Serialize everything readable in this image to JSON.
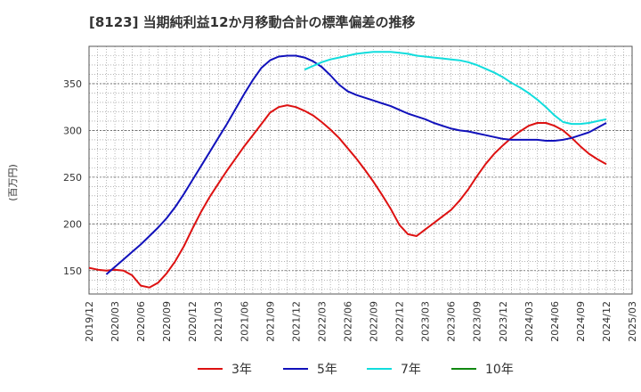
{
  "chart_data": {
    "type": "line",
    "title": "[8123]  当期純利益12か月移動合計の標準偏差の推移",
    "ylabel": "(百万円)",
    "xlabel": "",
    "x_ticks": [
      "2019/12",
      "2020/03",
      "2020/06",
      "2020/09",
      "2020/12",
      "2021/03",
      "2021/06",
      "2021/09",
      "2021/12",
      "2022/03",
      "2022/06",
      "2022/09",
      "2022/12",
      "2023/03",
      "2023/06",
      "2023/09",
      "2023/12",
      "2024/03",
      "2024/06",
      "2024/09",
      "2024/12",
      "2025/03"
    ],
    "y_ticks": [
      150,
      200,
      250,
      300,
      350
    ],
    "ylim": [
      125,
      390
    ],
    "grid": true,
    "legend_position": "bottom",
    "series": [
      {
        "name": "3年",
        "color": "#dd1111",
        "points": [
          [
            "2019/12",
            153
          ],
          [
            "2020/01",
            151
          ],
          [
            "2020/02",
            150
          ],
          [
            "2020/03",
            151
          ],
          [
            "2020/04",
            150
          ],
          [
            "2020/05",
            145
          ],
          [
            "2020/06",
            134
          ],
          [
            "2020/07",
            132
          ],
          [
            "2020/08",
            137
          ],
          [
            "2020/09",
            147
          ],
          [
            "2020/10",
            160
          ],
          [
            "2020/11",
            176
          ],
          [
            "2020/12",
            195
          ],
          [
            "2021/01",
            213
          ],
          [
            "2021/02",
            229
          ],
          [
            "2021/03",
            243
          ],
          [
            "2021/04",
            257
          ],
          [
            "2021/05",
            270
          ],
          [
            "2021/06",
            283
          ],
          [
            "2021/07",
            295
          ],
          [
            "2021/08",
            307
          ],
          [
            "2021/09",
            319
          ],
          [
            "2021/10",
            325
          ],
          [
            "2021/11",
            327
          ],
          [
            "2021/12",
            325
          ],
          [
            "2022/01",
            321
          ],
          [
            "2022/02",
            316
          ],
          [
            "2022/03",
            309
          ],
          [
            "2022/04",
            301
          ],
          [
            "2022/05",
            292
          ],
          [
            "2022/06",
            281
          ],
          [
            "2022/07",
            270
          ],
          [
            "2022/08",
            258
          ],
          [
            "2022/09",
            245
          ],
          [
            "2022/10",
            231
          ],
          [
            "2022/11",
            216
          ],
          [
            "2022/12",
            199
          ],
          [
            "2023/01",
            189
          ],
          [
            "2023/02",
            187
          ],
          [
            "2023/03",
            194
          ],
          [
            "2023/04",
            201
          ],
          [
            "2023/05",
            208
          ],
          [
            "2023/06",
            215
          ],
          [
            "2023/07",
            225
          ],
          [
            "2023/08",
            237
          ],
          [
            "2023/09",
            251
          ],
          [
            "2023/10",
            264
          ],
          [
            "2023/11",
            275
          ],
          [
            "2023/12",
            284
          ],
          [
            "2024/01",
            292
          ],
          [
            "2024/02",
            299
          ],
          [
            "2024/03",
            305
          ],
          [
            "2024/04",
            308
          ],
          [
            "2024/05",
            308
          ],
          [
            "2024/06",
            305
          ],
          [
            "2024/07",
            300
          ],
          [
            "2024/08",
            292
          ],
          [
            "2024/09",
            283
          ],
          [
            "2024/10",
            275
          ],
          [
            "2024/11",
            269
          ],
          [
            "2024/12",
            264
          ]
        ]
      },
      {
        "name": "5年",
        "color": "#1111bb",
        "points": [
          [
            "2020/02",
            146
          ],
          [
            "2020/03",
            154
          ],
          [
            "2020/04",
            162
          ],
          [
            "2020/05",
            170
          ],
          [
            "2020/06",
            178
          ],
          [
            "2020/07",
            187
          ],
          [
            "2020/08",
            196
          ],
          [
            "2020/09",
            206
          ],
          [
            "2020/10",
            218
          ],
          [
            "2020/11",
            232
          ],
          [
            "2020/12",
            247
          ],
          [
            "2021/01",
            262
          ],
          [
            "2021/02",
            277
          ],
          [
            "2021/03",
            292
          ],
          [
            "2021/04",
            307
          ],
          [
            "2021/05",
            323
          ],
          [
            "2021/06",
            339
          ],
          [
            "2021/07",
            354
          ],
          [
            "2021/08",
            367
          ],
          [
            "2021/09",
            375
          ],
          [
            "2021/10",
            379
          ],
          [
            "2021/11",
            380
          ],
          [
            "2021/12",
            380
          ],
          [
            "2022/01",
            378
          ],
          [
            "2022/02",
            374
          ],
          [
            "2022/03",
            368
          ],
          [
            "2022/04",
            359
          ],
          [
            "2022/05",
            349
          ],
          [
            "2022/06",
            342
          ],
          [
            "2022/07",
            338
          ],
          [
            "2022/08",
            335
          ],
          [
            "2022/09",
            332
          ],
          [
            "2022/10",
            329
          ],
          [
            "2022/11",
            326
          ],
          [
            "2022/12",
            322
          ],
          [
            "2023/01",
            318
          ],
          [
            "2023/02",
            315
          ],
          [
            "2023/03",
            312
          ],
          [
            "2023/04",
            308
          ],
          [
            "2023/05",
            305
          ],
          [
            "2023/06",
            302
          ],
          [
            "2023/07",
            300
          ],
          [
            "2023/08",
            299
          ],
          [
            "2023/09",
            297
          ],
          [
            "2023/10",
            295
          ],
          [
            "2023/11",
            293
          ],
          [
            "2023/12",
            291
          ],
          [
            "2024/01",
            290
          ],
          [
            "2024/02",
            290
          ],
          [
            "2024/03",
            290
          ],
          [
            "2024/04",
            290
          ],
          [
            "2024/05",
            289
          ],
          [
            "2024/06",
            289
          ],
          [
            "2024/07",
            290
          ],
          [
            "2024/08",
            292
          ],
          [
            "2024/09",
            295
          ],
          [
            "2024/10",
            298
          ],
          [
            "2024/11",
            303
          ],
          [
            "2024/12",
            308
          ]
        ]
      },
      {
        "name": "7年",
        "color": "#11dddd",
        "points": [
          [
            "2022/01",
            365
          ],
          [
            "2022/02",
            369
          ],
          [
            "2022/03",
            373
          ],
          [
            "2022/04",
            376
          ],
          [
            "2022/05",
            378
          ],
          [
            "2022/06",
            380
          ],
          [
            "2022/07",
            382
          ],
          [
            "2022/08",
            383
          ],
          [
            "2022/09",
            384
          ],
          [
            "2022/10",
            384
          ],
          [
            "2022/11",
            384
          ],
          [
            "2022/12",
            383
          ],
          [
            "2023/01",
            382
          ],
          [
            "2023/02",
            380
          ],
          [
            "2023/03",
            379
          ],
          [
            "2023/04",
            378
          ],
          [
            "2023/05",
            377
          ],
          [
            "2023/06",
            376
          ],
          [
            "2023/07",
            375
          ],
          [
            "2023/08",
            373
          ],
          [
            "2023/09",
            370
          ],
          [
            "2023/10",
            366
          ],
          [
            "2023/11",
            362
          ],
          [
            "2023/12",
            357
          ],
          [
            "2024/01",
            351
          ],
          [
            "2024/02",
            346
          ],
          [
            "2024/03",
            340
          ],
          [
            "2024/04",
            333
          ],
          [
            "2024/05",
            325
          ],
          [
            "2024/06",
            316
          ],
          [
            "2024/07",
            309
          ],
          [
            "2024/08",
            307
          ],
          [
            "2024/09",
            307
          ],
          [
            "2024/10",
            308
          ],
          [
            "2024/11",
            310
          ],
          [
            "2024/12",
            312
          ]
        ]
      },
      {
        "name": "10年",
        "color": "#118811",
        "points": []
      }
    ]
  }
}
